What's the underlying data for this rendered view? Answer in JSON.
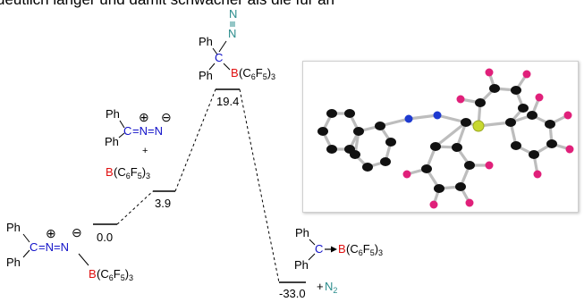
{
  "header_fragment": "deutlich länger und damit schwächer als die für an",
  "colors": {
    "carbon": "#1010c8",
    "boron": "#e01010",
    "nitrogen": "#2a8c8c",
    "text": "#000000"
  },
  "energy_levels": [
    {
      "id": "start",
      "value": "0.0"
    },
    {
      "id": "separated",
      "value": "3.9"
    },
    {
      "id": "adduct",
      "value": "19.4"
    },
    {
      "id": "product",
      "value": "-33.0"
    }
  ],
  "structures": {
    "start": {
      "ph_top": "Ph",
      "ph_bottom": "Ph",
      "carbon": "C",
      "diazo": "=N=N",
      "plus": "⊕",
      "minus": "⊖",
      "boron": "B",
      "boron_ligand": "(C6F5)3"
    },
    "separated": {
      "ph_top": "Ph",
      "ph_bottom": "Ph",
      "carbon": "C",
      "diazo": "=N=N",
      "plus": "⊕",
      "minus": "⊖",
      "plus_sign": "+",
      "boron": "B",
      "boron_ligand": "(C6F5)3"
    },
    "adduct": {
      "ph_top": "Ph",
      "ph_bottom": "Ph",
      "carbon": "C",
      "n1": "N",
      "n2": "N",
      "boron": "B",
      "boron_ligand": "(C6F5)3"
    },
    "product": {
      "ph_top": "Ph",
      "ph_bottom": "Ph",
      "carbon": "C",
      "boron": "B",
      "boron_ligand": "(C6F5)3",
      "n2_plus": "+",
      "n2": "N2"
    }
  },
  "crystal_structure": {
    "atom_colors": {
      "C": "#111111",
      "F": "#e0207a",
      "N": "#1e3ad0",
      "B": "#c8d830"
    }
  }
}
